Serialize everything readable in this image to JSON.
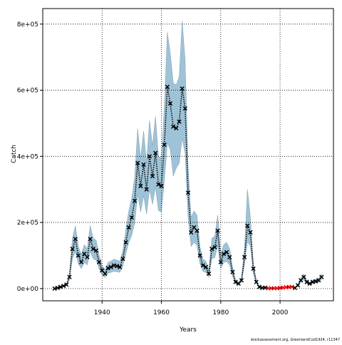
{
  "chart_data": {
    "type": "line",
    "xlabel": "Years",
    "ylabel": "Catch",
    "footnote": "stockassessment.org, GreenlandCod1924, r11347",
    "xlim": [
      1920,
      2018
    ],
    "xticks": [
      1940,
      1960,
      1980,
      2000
    ],
    "ylim": [
      -37000,
      847000
    ],
    "yticks": [
      {
        "value": 0,
        "label": "0e+00"
      },
      {
        "value": 200000,
        "label": "2e+05"
      },
      {
        "value": 400000,
        "label": "4e+05"
      },
      {
        "value": 600000,
        "label": "6e+05"
      },
      {
        "value": 800000,
        "label": "8e+05"
      }
    ],
    "grid": true,
    "band_color": "#9fc3d6",
    "line_color": "#000000",
    "marker_color": "#000000",
    "missing_color": "#ff0000",
    "x": [
      1924,
      1925,
      1926,
      1927,
      1928,
      1929,
      1930,
      1931,
      1932,
      1933,
      1934,
      1935,
      1936,
      1937,
      1938,
      1939,
      1940,
      1941,
      1942,
      1943,
      1944,
      1945,
      1946,
      1947,
      1948,
      1949,
      1950,
      1951,
      1952,
      1953,
      1954,
      1955,
      1956,
      1957,
      1958,
      1959,
      1960,
      1961,
      1962,
      1963,
      1964,
      1965,
      1966,
      1967,
      1968,
      1969,
      1970,
      1971,
      1972,
      1973,
      1974,
      1975,
      1976,
      1977,
      1978,
      1979,
      1980,
      1981,
      1982,
      1983,
      1984,
      1985,
      1986,
      1987,
      1988,
      1989,
      1990,
      1991,
      1992,
      1993,
      1994,
      1995,
      1996,
      1997,
      1998,
      1999,
      2000,
      2001,
      2002,
      2003,
      2004,
      2005,
      2006,
      2007,
      2008,
      2009,
      2010,
      2011,
      2012,
      2013,
      2014
    ],
    "estimate": [
      0,
      2000,
      5000,
      8000,
      12000,
      35000,
      120000,
      150000,
      100000,
      80000,
      105000,
      95000,
      150000,
      120000,
      115000,
      80000,
      55000,
      45000,
      62000,
      65000,
      70000,
      68000,
      65000,
      90000,
      140000,
      185000,
      215000,
      265000,
      380000,
      310000,
      375000,
      300000,
      400000,
      340000,
      410000,
      315000,
      310000,
      435000,
      610000,
      560000,
      490000,
      485000,
      505000,
      605000,
      545000,
      290000,
      170000,
      185000,
      175000,
      100000,
      70000,
      65000,
      45000,
      120000,
      125000,
      175000,
      80000,
      105000,
      110000,
      95000,
      50000,
      20000,
      15000,
      25000,
      95000,
      190000,
      170000,
      60000,
      20000,
      5000,
      2000,
      3000,
      1000,
      1000,
      1000,
      1000,
      2000,
      3000,
      4000,
      5000,
      5000,
      2000,
      10000,
      25000,
      35000,
      20000,
      15000,
      20000,
      22000,
      25000,
      35000
    ],
    "lower": [
      0,
      1000,
      4000,
      6000,
      9000,
      26000,
      90000,
      112000,
      75000,
      60000,
      79000,
      71000,
      112000,
      90000,
      86000,
      60000,
      41000,
      34000,
      46000,
      49000,
      52000,
      51000,
      49000,
      68000,
      105000,
      139000,
      161000,
      199000,
      285000,
      232000,
      281000,
      225000,
      300000,
      255000,
      307000,
      236000,
      232000,
      326000,
      440000,
      420000,
      340000,
      364000,
      379000,
      454000,
      409000,
      217000,
      127000,
      139000,
      131000,
      75000,
      52000,
      49000,
      34000,
      90000,
      94000,
      131000,
      60000,
      79000,
      82000,
      71000,
      37000,
      15000,
      11000,
      19000,
      71000,
      142000,
      127000,
      45000,
      15000,
      4000,
      1000,
      2000,
      0,
      0,
      0,
      0,
      1000,
      2000,
      3000,
      4000,
      4000,
      1000,
      7000,
      19000,
      26000,
      15000,
      11000,
      15000,
      16000,
      19000,
      26000
    ],
    "upper": [
      0,
      3000,
      6000,
      10000,
      15000,
      44000,
      152000,
      190000,
      127000,
      102000,
      133000,
      121000,
      190000,
      152000,
      146000,
      102000,
      70000,
      57000,
      79000,
      83000,
      89000,
      86000,
      83000,
      114000,
      178000,
      235000,
      273000,
      337000,
      483000,
      394000,
      476000,
      381000,
      508000,
      432000,
      521000,
      400000,
      394000,
      552000,
      775000,
      711000,
      622000,
      616000,
      641000,
      810000,
      692000,
      368000,
      216000,
      235000,
      222000,
      127000,
      89000,
      83000,
      57000,
      152000,
      159000,
      222000,
      102000,
      133000,
      140000,
      121000,
      64000,
      25000,
      19000,
      32000,
      121000,
      300000,
      216000,
      76000,
      25000,
      6000,
      3000,
      4000,
      1000,
      1000,
      1000,
      1000,
      3000,
      4000,
      5000,
      6000,
      6000,
      3000,
      13000,
      32000,
      44000,
      25000,
      19000,
      25000,
      28000,
      32000,
      44000
    ],
    "observed": [
      0,
      2000,
      5000,
      8000,
      12000,
      35000,
      120000,
      150000,
      100000,
      80000,
      105000,
      95000,
      150000,
      120000,
      115000,
      80000,
      55000,
      45000,
      62000,
      65000,
      70000,
      68000,
      65000,
      90000,
      140000,
      185000,
      215000,
      265000,
      380000,
      310000,
      375000,
      300000,
      400000,
      340000,
      410000,
      315000,
      310000,
      435000,
      610000,
      560000,
      490000,
      485000,
      505000,
      605000,
      545000,
      290000,
      170000,
      185000,
      175000,
      100000,
      70000,
      65000,
      45000,
      120000,
      125000,
      175000,
      80000,
      105000,
      110000,
      95000,
      50000,
      20000,
      15000,
      25000,
      95000,
      190000,
      170000,
      60000,
      20000,
      5000,
      2000,
      3000,
      null,
      null,
      null,
      null,
      null,
      null,
      null,
      null,
      null,
      2000,
      10000,
      25000,
      35000,
      20000,
      15000,
      20000,
      22000,
      25000,
      35000
    ],
    "missing": [
      null,
      null,
      null,
      null,
      null,
      null,
      null,
      null,
      null,
      null,
      null,
      null,
      null,
      null,
      null,
      null,
      null,
      null,
      null,
      null,
      null,
      null,
      null,
      null,
      null,
      null,
      null,
      null,
      null,
      null,
      null,
      null,
      null,
      null,
      null,
      null,
      null,
      null,
      null,
      null,
      null,
      null,
      null,
      null,
      null,
      null,
      null,
      null,
      null,
      null,
      null,
      null,
      null,
      null,
      null,
      null,
      null,
      null,
      null,
      null,
      null,
      null,
      null,
      null,
      null,
      null,
      null,
      null,
      null,
      null,
      null,
      null,
      1000,
      1000,
      1000,
      1000,
      2000,
      3000,
      4000,
      5000,
      5000,
      null,
      null,
      null,
      null,
      null,
      null,
      null,
      null,
      null,
      null
    ]
  }
}
